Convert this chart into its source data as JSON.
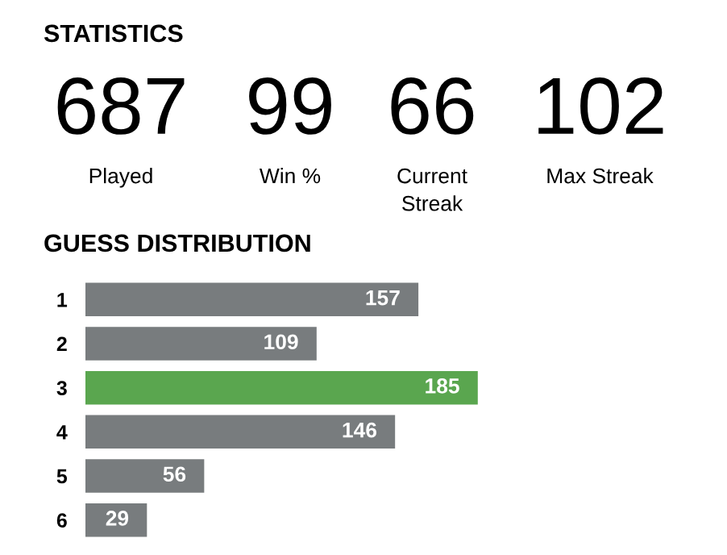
{
  "chart_data": [
    {
      "type": "other",
      "title": "STATISTICS",
      "categories": [
        "Played",
        "Win %",
        "Current\nStreak",
        "Max Streak"
      ],
      "values": [
        687,
        99,
        66,
        102
      ],
      "data_labels": true
    },
    {
      "type": "bar",
      "orientation": "horizontal",
      "title": "GUESS DISTRIBUTION",
      "categories": [
        "1",
        "2",
        "3",
        "4",
        "5",
        "6"
      ],
      "values": [
        157,
        109,
        185,
        146,
        56,
        29
      ],
      "colors": [
        "#787c7e",
        "#787c7e",
        "#5aa64f",
        "#787c7e",
        "#787c7e",
        "#787c7e"
      ],
      "data_labels": true,
      "grid": false,
      "legend": false
    }
  ]
}
